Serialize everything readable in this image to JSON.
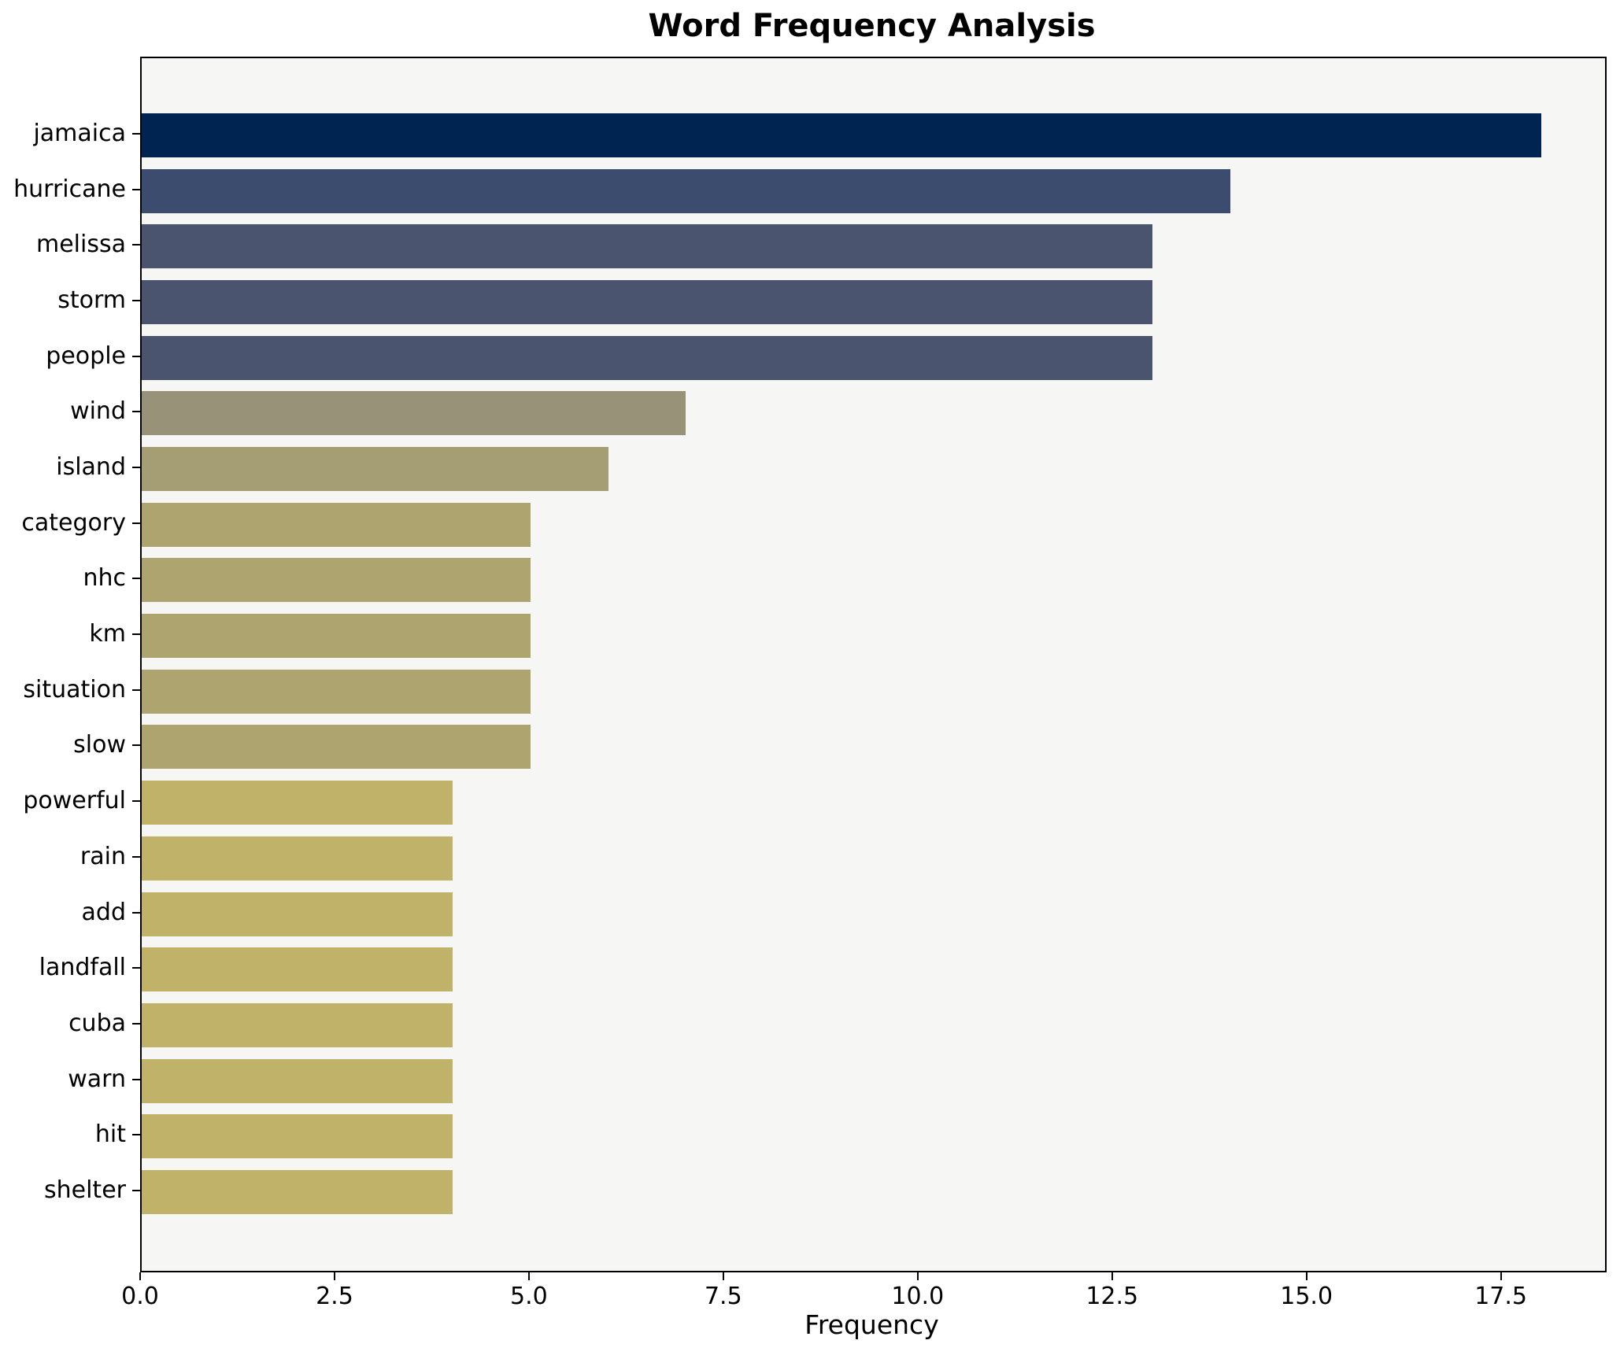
{
  "title": "Word Frequency Analysis",
  "chart_data": {
    "type": "bar",
    "orientation": "horizontal",
    "title": "Word Frequency Analysis",
    "xlabel": "Frequency",
    "ylabel": "",
    "categories": [
      "jamaica",
      "hurricane",
      "melissa",
      "storm",
      "people",
      "wind",
      "island",
      "category",
      "nhc",
      "km",
      "situation",
      "slow",
      "powerful",
      "rain",
      "add",
      "landfall",
      "cuba",
      "warn",
      "hit",
      "shelter"
    ],
    "values": [
      18,
      14,
      13,
      13,
      13,
      7,
      6,
      5,
      5,
      5,
      5,
      5,
      4,
      4,
      4,
      4,
      4,
      4,
      4,
      4
    ],
    "bar_colors": [
      "#002452",
      "#3c4c6e",
      "#4a546f",
      "#4a546f",
      "#4a546f",
      "#989279",
      "#a59e74",
      "#aea46f",
      "#aea46f",
      "#aea46f",
      "#aea46f",
      "#aea46f",
      "#c0b268",
      "#c0b268",
      "#c0b268",
      "#c0b268",
      "#c0b268",
      "#c0b268",
      "#c0b268",
      "#c0b268"
    ],
    "xlim": [
      0,
      18.82
    ],
    "x_ticks": [
      0.0,
      2.5,
      5.0,
      7.5,
      10.0,
      12.5,
      15.0,
      17.5
    ],
    "x_tick_labels": [
      "0.0",
      "2.5",
      "5.0",
      "7.5",
      "10.0",
      "12.5",
      "15.0",
      "17.5"
    ],
    "grid": false,
    "legend": null,
    "colormap_style": "cividis",
    "plot_background": "#f6f6f4",
    "figure_background": "#ffffff",
    "spine_color": "#000000",
    "text_color": "#000000"
  }
}
